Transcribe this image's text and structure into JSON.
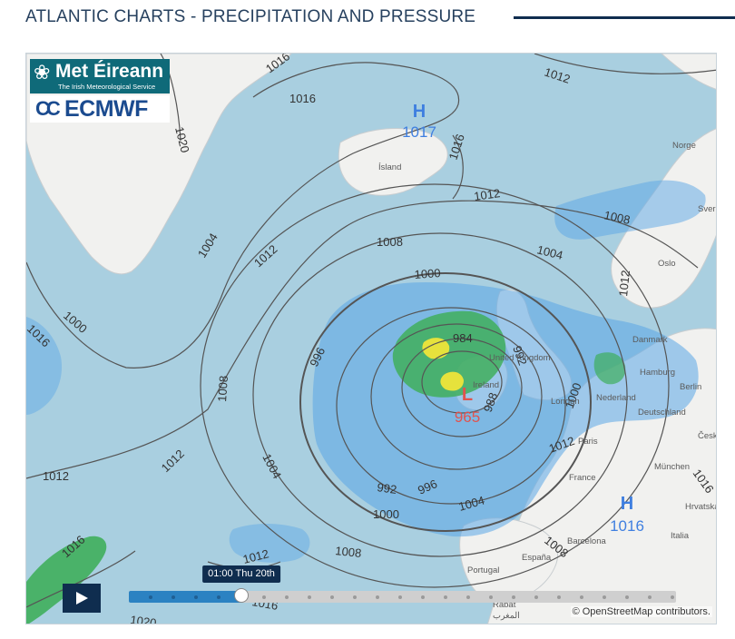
{
  "header": {
    "title": "ATLANTIC CHARTS - PRECIPITATION AND PRESSURE"
  },
  "logos": {
    "met_name": "Met Éireann",
    "met_tagline": "The Irish Meteorological Service",
    "ecmwf_name": "ECMWF"
  },
  "pressure_centres": [
    {
      "type": "H",
      "value": "1017",
      "color": "#3f7fe0"
    },
    {
      "type": "L",
      "value": "965",
      "color": "#e0534e"
    },
    {
      "type": "H",
      "value": "1016",
      "color": "#3f7fe0"
    }
  ],
  "isobar_labels": [
    "1012",
    "1016",
    "1020",
    "1016",
    "1016",
    "1012",
    "1008",
    "1004",
    "1000",
    "1012",
    "1008",
    "1004",
    "1000",
    "996",
    "992",
    "988",
    "984",
    "1008",
    "1012",
    "1016",
    "1012",
    "1004",
    "1000",
    "1004",
    "996",
    "992",
    "1000",
    "1008",
    "1012",
    "1016",
    "1020",
    "1008",
    "1012",
    "1016",
    "1016",
    "1012"
  ],
  "place_labels": [
    "Ísland",
    "Norge",
    "Sverige",
    "Oslo",
    "Danmark",
    "United Kingdom",
    "Ireland",
    "Hamburg",
    "Berlin",
    "Nederland",
    "Deutschland",
    "London",
    "Paris",
    "Česko",
    "München",
    "France",
    "Hrvatska",
    "Italia",
    "Barcelona",
    "España",
    "Portugal",
    "Rabat",
    "المغرب"
  ],
  "timeline": {
    "current_time": "01:00 Thu 20th",
    "step_count": 24,
    "current_step": 4
  },
  "attribution": {
    "prefix": "© ",
    "link": "OpenStreetMap",
    "suffix": " contributors."
  },
  "colors": {
    "sea": "#a9cfe0",
    "land": "#f1f1ef",
    "rain_light": "#5aa6e6",
    "rain_moderate": "#3fae5c",
    "rain_heavy": "#e6e23c",
    "isobar": "#555555"
  }
}
